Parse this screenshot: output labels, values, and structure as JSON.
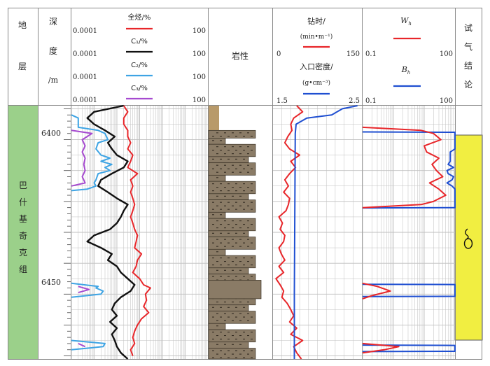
{
  "headers": {
    "formation": [
      "地",
      "层"
    ],
    "depth": [
      "深",
      "度",
      "/m"
    ],
    "lithology": "岩性",
    "test": [
      "试",
      "气",
      "结",
      "论"
    ],
    "gas_curves": [
      {
        "label": "全烃/%",
        "min": "0.0001",
        "max": "100",
        "color": "#e8262a"
      },
      {
        "label": "C₁/%",
        "min": "0.0001",
        "max": "100",
        "color": "#111111"
      },
      {
        "label": "C₂/%",
        "min": "0.0001",
        "max": "100",
        "color": "#3ea4e4"
      },
      {
        "label": "C₃/%",
        "min": "0.0001",
        "max": "100",
        "color": "#a64ad0"
      }
    ],
    "drill": [
      {
        "label1": "钻时/",
        "label2": "(min•m⁻¹)",
        "min": "0",
        "max": "150",
        "color": "#e8262a"
      },
      {
        "label1": "入口密度/",
        "label2": "(g•cm⁻³)",
        "min": "1.5",
        "max": "2.5",
        "color": "#1f4fd1"
      }
    ],
    "ratio": [
      {
        "label": "W",
        "sub": "h",
        "min": "0.1",
        "max": "100",
        "color": "#e8262a"
      },
      {
        "label": "B",
        "sub": "h",
        "min": "0.1",
        "max": "100",
        "color": "#1f4fd1"
      }
    ]
  },
  "formation_name": [
    "巴",
    "什",
    "基",
    "奇",
    "克",
    "组"
  ],
  "depth_ticks": [
    "6400",
    "6450"
  ],
  "colors": {
    "formation_fill": "#9bd08a",
    "test_fill": "#f1ee41",
    "rock": "#8a7b66",
    "grid": "#bfbfbf"
  },
  "test_symbol_icon": "gas-drop-icon",
  "chart_data": {
    "type": "line",
    "depth_range": [
      6389,
      6471
    ],
    "depth_unit": "m",
    "series": [
      {
        "name": "全烃",
        "scale": "log",
        "range": [
          0.0001,
          100
        ],
        "depth": [
          6389,
          6391,
          6393,
          6395,
          6397,
          6399,
          6401,
          6403,
          6405,
          6407,
          6409,
          6411,
          6413,
          6415,
          6417,
          6419,
          6421,
          6423,
          6425,
          6427,
          6429,
          6431,
          6433,
          6435,
          6437,
          6439,
          6441,
          6443,
          6445,
          6447,
          6448,
          6450,
          6452,
          6454,
          6456,
          6458,
          6460,
          6462,
          6464,
          6466,
          6468,
          6470
        ],
        "values": [
          0.02,
          0.03,
          0.02,
          0.02,
          0.03,
          0.03,
          0.04,
          0.03,
          0.05,
          0.04,
          0.03,
          0.08,
          0.04,
          0.05,
          0.04,
          0.05,
          0.06,
          0.05,
          0.04,
          0.05,
          0.06,
          0.08,
          0.07,
          0.06,
          0.12,
          0.08,
          0.07,
          0.05,
          0.1,
          0.15,
          0.3,
          0.18,
          0.2,
          0.15,
          0.25,
          0.12,
          0.08,
          0.06,
          0.05,
          0.06,
          0.04,
          0.05
        ]
      },
      {
        "name": "C₁",
        "scale": "log",
        "range": [
          0.0001,
          100
        ],
        "depth": [
          6389,
          6391,
          6393,
          6395,
          6397,
          6399,
          6401,
          6403,
          6405,
          6407,
          6409,
          6411,
          6413,
          6415,
          6417,
          6419,
          6421,
          6423,
          6425,
          6427,
          6429,
          6431,
          6433,
          6435,
          6437,
          6439,
          6441,
          6443,
          6445,
          6447,
          6449,
          6451,
          6453,
          6455,
          6457,
          6459,
          6461,
          6463,
          6465,
          6467,
          6469,
          6471
        ],
        "values": [
          0.02,
          0.001,
          0.0005,
          0.001,
          0.003,
          0.008,
          0.004,
          0.006,
          0.01,
          0.03,
          0.02,
          0.006,
          0.002,
          0.0015,
          0.004,
          0.01,
          0.03,
          0.02,
          0.015,
          0.01,
          0.005,
          0.001,
          0.0005,
          0.002,
          0.006,
          0.004,
          0.01,
          0.015,
          0.03,
          0.06,
          0.04,
          0.015,
          0.008,
          0.006,
          0.01,
          0.005,
          0.01,
          0.006,
          0.008,
          0.01,
          0.015,
          0.03
        ]
      },
      {
        "name": "C₂",
        "scale": "log",
        "range": [
          0.0001,
          100
        ],
        "segments": [
          {
            "depth": [
              6392,
              6393,
              6396,
              6397,
              6398,
              6400,
              6401,
              6403,
              6405,
              6406,
              6407,
              6408,
              6409,
              6410,
              6411,
              6413,
              6414,
              6415,
              6416,
              6416.5
            ],
            "values": [
              0.0001,
              0.0002,
              0.0002,
              0.0015,
              0.003,
              0.004,
              0.0015,
              0.0012,
              0.002,
              0.005,
              0.002,
              0.006,
              0.003,
              0.005,
              0.0015,
              0.0012,
              0.001,
              0.0012,
              0.0005,
              0.0001
            ]
          },
          {
            "depth": [
              6446.5,
              6447.5,
              6448,
              6449,
              6450,
              6451
            ],
            "values": [
              0.0001,
              0.0015,
              0.0012,
              0.0025,
              0.002,
              0.0001
            ]
          },
          {
            "depth": [
              6465,
              6466,
              6467,
              6468
            ],
            "values": [
              0.0001,
              0.003,
              0.0025,
              0.0001
            ]
          }
        ]
      },
      {
        "name": "C₃",
        "scale": "log",
        "range": [
          0.0001,
          100
        ],
        "segments": [
          {
            "depth": [
              6397,
              6398,
              6400,
              6402,
              6404,
              6406,
              6408,
              6410,
              6412,
              6414,
              6415
            ],
            "values": [
              0.0001,
              0.0008,
              0.0003,
              0.0004,
              0.0003,
              0.0004,
              0.00035,
              0.0004,
              0.0003,
              0.0004,
              0.0001
            ]
          },
          {
            "depth": [
              6447.5,
              6448.5,
              6449.5
            ],
            "values": [
              0.0002,
              0.0006,
              0.0002
            ]
          },
          {
            "depth": [
              6466,
              6467
            ],
            "values": [
              0.0002,
              0.0004
            ]
          }
        ]
      },
      {
        "name": "钻时",
        "scale": "linear",
        "range": [
          0,
          150
        ],
        "depth": [
          6389,
          6391,
          6393,
          6395,
          6397,
          6399,
          6401,
          6403,
          6405,
          6407,
          6409,
          6411,
          6413,
          6415,
          6417,
          6419,
          6421,
          6423,
          6425,
          6427,
          6429,
          6431,
          6433,
          6435,
          6437,
          6439,
          6441,
          6443,
          6445,
          6447,
          6449,
          6451,
          6453,
          6455,
          6457,
          6459,
          6461,
          6463,
          6465,
          6467,
          6469,
          6471
        ],
        "values": [
          40,
          50,
          35,
          30,
          32,
          25,
          20,
          28,
          45,
          30,
          38,
          28,
          20,
          26,
          18,
          28,
          26,
          22,
          10,
          16,
          12,
          20,
          18,
          10,
          14,
          20,
          10,
          18,
          5,
          12,
          18,
          15,
          24,
          30,
          35,
          28,
          40,
          30,
          50,
          35,
          40,
          48
        ]
      },
      {
        "name": "入口密度",
        "scale": "linear",
        "range": [
          1.5,
          2.5
        ],
        "depth": [
          6389,
          6390,
          6392,
          6393,
          6395,
          6398,
          6450,
          6471
        ],
        "values": [
          2.45,
          2.28,
          2.16,
          1.88,
          1.76,
          1.75,
          1.74,
          1.74
        ]
      }
    ],
    "wh_bh": {
      "Wh": {
        "scale": "log",
        "range": [
          0.1,
          100
        ],
        "segments": [
          {
            "depth": [
              6396,
              6397,
              6398,
              6400,
              6402,
              6404,
              6406,
              6408,
              6410,
              6412,
              6414,
              6416,
              6418,
              6420,
              6421,
              6422
            ],
            "values": [
              0.1,
              8,
              20,
              35,
              10,
              12,
              30,
              18,
              25,
              40,
              15,
              30,
              50,
              20,
              8,
              0.1
            ]
          },
          {
            "depth": [
              6446.5,
              6447.5,
              6449,
              6450.5,
              6451.5
            ],
            "values": [
              0.1,
              0.3,
              0.8,
              0.2,
              0.1
            ]
          },
          {
            "depth": [
              6466,
              6467,
              6468,
              6469
            ],
            "values": [
              0.1,
              1.5,
              0.5,
              0.1
            ]
          }
        ]
      },
      "Bh": {
        "scale": "log",
        "range": [
          0.1,
          100
        ],
        "segments": [
          {
            "depth": [
              6397.5,
              6397.6,
              6403,
              6404,
              6407,
              6408,
              6409,
              6410,
              6411,
              6412,
              6413,
              6414,
              6415,
              6416,
              6422,
              6422.1
            ],
            "values": [
              0.1,
              100,
              100,
              70,
              70,
              60,
              90,
              55,
              60,
              90,
              80,
              55,
              80,
              100,
              100,
              0.1
            ]
          },
          {
            "depth": [
              6446.8,
              6446.9,
              6450.7,
              6450.8
            ],
            "values": [
              0.1,
              100,
              100,
              0.1
            ]
          },
          {
            "depth": [
              6466.5,
              6466.6,
              6468.5,
              6468.6
            ],
            "values": [
              0.1,
              100,
              100,
              0.1
            ]
          }
        ]
      }
    },
    "test_interval_depth": [
      6389,
      6463
    ]
  }
}
